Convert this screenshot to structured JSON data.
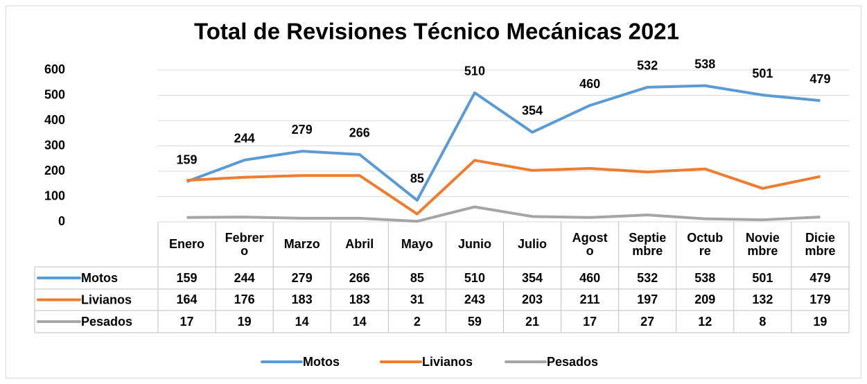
{
  "chart_data": {
    "type": "line",
    "title": "Total de Revisiones Técnico Mecánicas 2021",
    "categories": [
      "Enero",
      "Febrero",
      "Marzo",
      "Abril",
      "Mayo",
      "Junio",
      "Julio",
      "Agosto",
      "Septiembre",
      "Octubre",
      "Noviembre",
      "Diciembre"
    ],
    "series": [
      {
        "name": "Motos",
        "color": "#5b9bd5",
        "values": [
          159,
          244,
          279,
          266,
          85,
          510,
          354,
          460,
          532,
          538,
          501,
          479
        ],
        "data_labels": true
      },
      {
        "name": "Livianos",
        "color": "#ed7d31",
        "values": [
          164,
          176,
          183,
          183,
          31,
          243,
          203,
          211,
          197,
          209,
          132,
          179
        ]
      },
      {
        "name": "Pesados",
        "color": "#a5a5a5",
        "values": [
          17,
          19,
          14,
          14,
          2,
          59,
          21,
          17,
          27,
          12,
          8,
          19
        ]
      }
    ],
    "ylim": [
      0,
      600
    ],
    "yticks": [
      0,
      100,
      200,
      300,
      400,
      500,
      600
    ],
    "grid": true,
    "data_table": true,
    "legend": "bottom"
  }
}
